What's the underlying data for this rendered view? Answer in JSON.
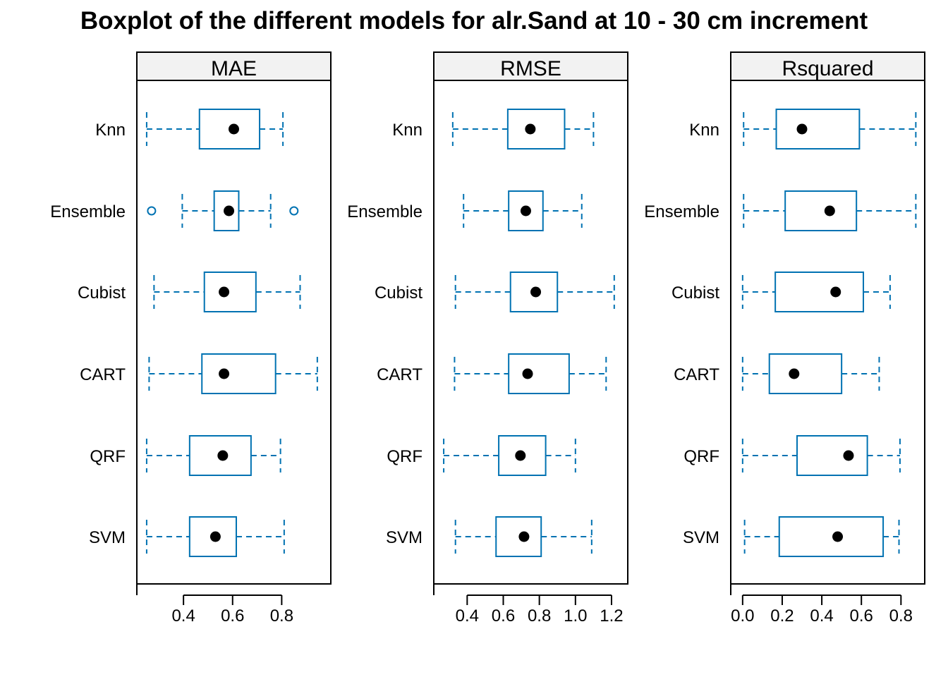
{
  "chart_data": {
    "type": "boxplot",
    "title": "Boxplot of the different models for alr.Sand at 10 - 30 cm increment",
    "colors": {
      "box": "#0072B2",
      "median_dot": "#000000",
      "strip_bg": "#F2F2F2"
    },
    "categories": [
      "Knn",
      "Ensemble",
      "Cubist",
      "CART",
      "QRF",
      "SVM"
    ],
    "panels": [
      {
        "name": "MAE",
        "xlim": [
          0.21,
          1.0
        ],
        "ticks": [
          0.4,
          0.6,
          0.8
        ],
        "tick_labels": [
          "0.4",
          "0.6",
          "0.8"
        ],
        "series": [
          {
            "model": "Knn",
            "min": 0.25,
            "q1": 0.465,
            "median": 0.605,
            "q3": 0.71,
            "max": 0.805,
            "outliers": []
          },
          {
            "model": "Ensemble",
            "min": 0.395,
            "q1": 0.525,
            "median": 0.585,
            "q3": 0.625,
            "max": 0.755,
            "outliers": [
              0.27,
              0.85
            ]
          },
          {
            "model": "Cubist",
            "min": 0.28,
            "q1": 0.485,
            "median": 0.565,
            "q3": 0.695,
            "max": 0.875,
            "outliers": []
          },
          {
            "model": "CART",
            "min": 0.26,
            "q1": 0.475,
            "median": 0.565,
            "q3": 0.775,
            "max": 0.945,
            "outliers": []
          },
          {
            "model": "QRF",
            "min": 0.25,
            "q1": 0.425,
            "median": 0.56,
            "q3": 0.675,
            "max": 0.795,
            "outliers": []
          },
          {
            "model": "SVM",
            "min": 0.25,
            "q1": 0.425,
            "median": 0.53,
            "q3": 0.615,
            "max": 0.81,
            "outliers": []
          }
        ]
      },
      {
        "name": "RMSE",
        "xlim": [
          0.215,
          1.29
        ],
        "ticks": [
          0.4,
          0.6,
          0.8,
          1.0,
          1.2
        ],
        "tick_labels": [
          "0.4",
          "0.6",
          "0.8",
          "1.0",
          "1.2"
        ],
        "series": [
          {
            "model": "Knn",
            "min": 0.32,
            "q1": 0.625,
            "median": 0.75,
            "q3": 0.94,
            "max": 1.1,
            "outliers": []
          },
          {
            "model": "Ensemble",
            "min": 0.38,
            "q1": 0.63,
            "median": 0.725,
            "q3": 0.82,
            "max": 1.035,
            "outliers": []
          },
          {
            "model": "Cubist",
            "min": 0.335,
            "q1": 0.64,
            "median": 0.78,
            "q3": 0.9,
            "max": 1.215,
            "outliers": []
          },
          {
            "model": "CART",
            "min": 0.33,
            "q1": 0.63,
            "median": 0.735,
            "q3": 0.965,
            "max": 1.17,
            "outliers": []
          },
          {
            "model": "QRF",
            "min": 0.27,
            "q1": 0.575,
            "median": 0.695,
            "q3": 0.835,
            "max": 1.0,
            "outliers": []
          },
          {
            "model": "SVM",
            "min": 0.335,
            "q1": 0.56,
            "median": 0.715,
            "q3": 0.81,
            "max": 1.09,
            "outliers": []
          }
        ]
      },
      {
        "name": "Rsquared",
        "xlim": [
          -0.06,
          0.92
        ],
        "ticks": [
          0.0,
          0.2,
          0.4,
          0.6,
          0.8
        ],
        "tick_labels": [
          "0.0",
          "0.2",
          "0.4",
          "0.6",
          "0.8"
        ],
        "series": [
          {
            "model": "Knn",
            "min": 0.005,
            "q1": 0.17,
            "median": 0.3,
            "q3": 0.59,
            "max": 0.875,
            "outliers": []
          },
          {
            "model": "Ensemble",
            "min": 0.005,
            "q1": 0.215,
            "median": 0.44,
            "q3": 0.575,
            "max": 0.875,
            "outliers": []
          },
          {
            "model": "Cubist",
            "min": 0.0,
            "q1": 0.165,
            "median": 0.47,
            "q3": 0.61,
            "max": 0.745,
            "outliers": []
          },
          {
            "model": "CART",
            "min": 0.0,
            "q1": 0.135,
            "median": 0.26,
            "q3": 0.5,
            "max": 0.69,
            "outliers": []
          },
          {
            "model": "QRF",
            "min": 0.0,
            "q1": 0.275,
            "median": 0.535,
            "q3": 0.63,
            "max": 0.795,
            "outliers": []
          },
          {
            "model": "SVM",
            "min": 0.01,
            "q1": 0.185,
            "median": 0.48,
            "q3": 0.71,
            "max": 0.79,
            "outliers": []
          }
        ]
      }
    ]
  }
}
